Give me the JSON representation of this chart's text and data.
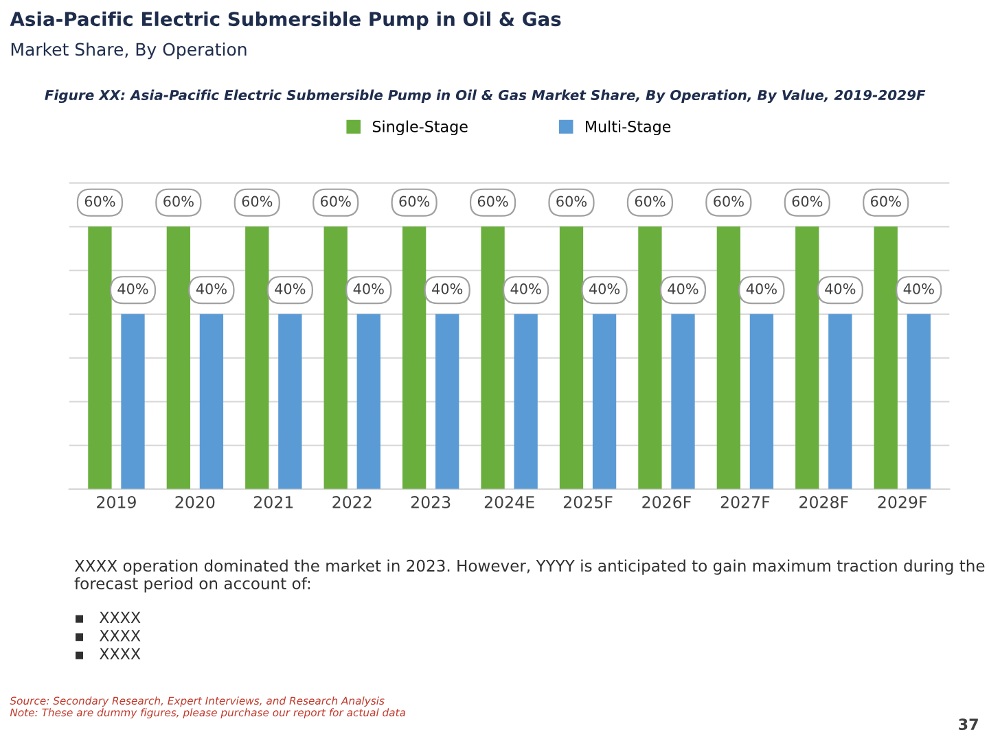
{
  "chart_data": {
    "type": "bar",
    "title": "Asia-Pacific Electric Submersible Pump in Oil & Gas",
    "subtitle": "Market Share, By Operation",
    "annotations": [
      "Figure XX: Asia-Pacific Electric Submersible Pump in Oil & Gas Market Share, By Operation, By Value, 2019-2029F",
      "XXXX operation dominated the market in 2023. However, YYYY is anticipated to gain maximum traction during the forecast period on account of:",
      "▪   XXXX\n▪   XXXX\n▪   XXXX",
      "Source: Secondary Research, Expert Interviews, and Research Analysis\nNote: These are dummy figures, please purchase our report for actual data",
      "37"
    ],
    "categories": [
      "2019",
      "2020",
      "2021",
      "2022",
      "2023",
      "2024E",
      "2025F",
      "2026F",
      "2027F",
      "2028F",
      "2029F"
    ],
    "series": [
      {
        "name": "Single-Stage",
        "color": "#6aaf3d",
        "values": [
          60,
          60,
          60,
          60,
          60,
          60,
          60,
          60,
          60,
          60,
          60
        ],
        "value_labels": [
          "60%",
          "60%",
          "60%",
          "60%",
          "60%",
          "60%",
          "60%",
          "60%",
          "60%",
          "60%",
          "60%"
        ]
      },
      {
        "name": "Multi-Stage",
        "color": "#5b9bd5",
        "values": [
          40,
          40,
          40,
          40,
          40,
          40,
          40,
          40,
          40,
          40,
          40
        ],
        "value_labels": [
          "40%",
          "40%",
          "40%",
          "40%",
          "40%",
          "40%",
          "40%",
          "40%",
          "40%",
          "40%",
          "40%"
        ]
      }
    ],
    "grid": "y",
    "legend": "top",
    "tick_labels": "x"
  }
}
